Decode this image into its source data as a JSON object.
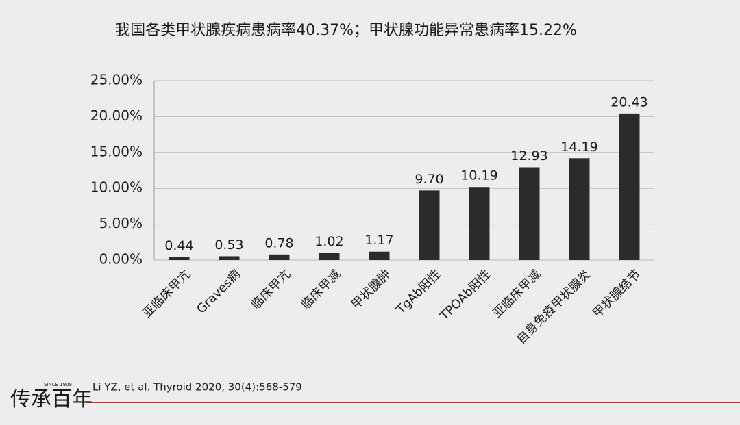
{
  "chart_data": {
    "type": "bar",
    "title": "我国各类甲状腺疾病患病率40.37%；甲状腺功能异常患病率15.22%",
    "categories": [
      "亚临床甲亢",
      "Graves病",
      "临床甲亢",
      "临床甲减",
      "甲状腺肿",
      "TgAb阳性",
      "TPOAb阳性",
      "亚临床甲减",
      "自身免疫甲状腺炎",
      "甲状腺结节"
    ],
    "values": [
      0.44,
      0.53,
      0.78,
      1.02,
      1.17,
      9.7,
      10.19,
      12.93,
      14.19,
      20.43
    ],
    "value_labels": [
      "0.44",
      "0.53",
      "0.78",
      "1.02",
      "1.17",
      "9.70",
      "10.19",
      "12.93",
      "14.19",
      "20.43"
    ],
    "color": "#2b2b2b",
    "ylim": [
      0,
      25
    ],
    "yticks": [
      {
        "value": 0,
        "label": "0.00%"
      },
      {
        "value": 5,
        "label": "5.00%"
      },
      {
        "value": 10,
        "label": "10.00%"
      },
      {
        "value": 15,
        "label": "15.00%"
      },
      {
        "value": 20,
        "label": "20.00%"
      },
      {
        "value": 25,
        "label": "25.00%"
      }
    ],
    "grid": true,
    "source": "Li YZ, et al. Thyroid 2020, 30(4):568-579"
  },
  "logo": {
    "text": "传承百年",
    "since": "SINCE 1908"
  }
}
